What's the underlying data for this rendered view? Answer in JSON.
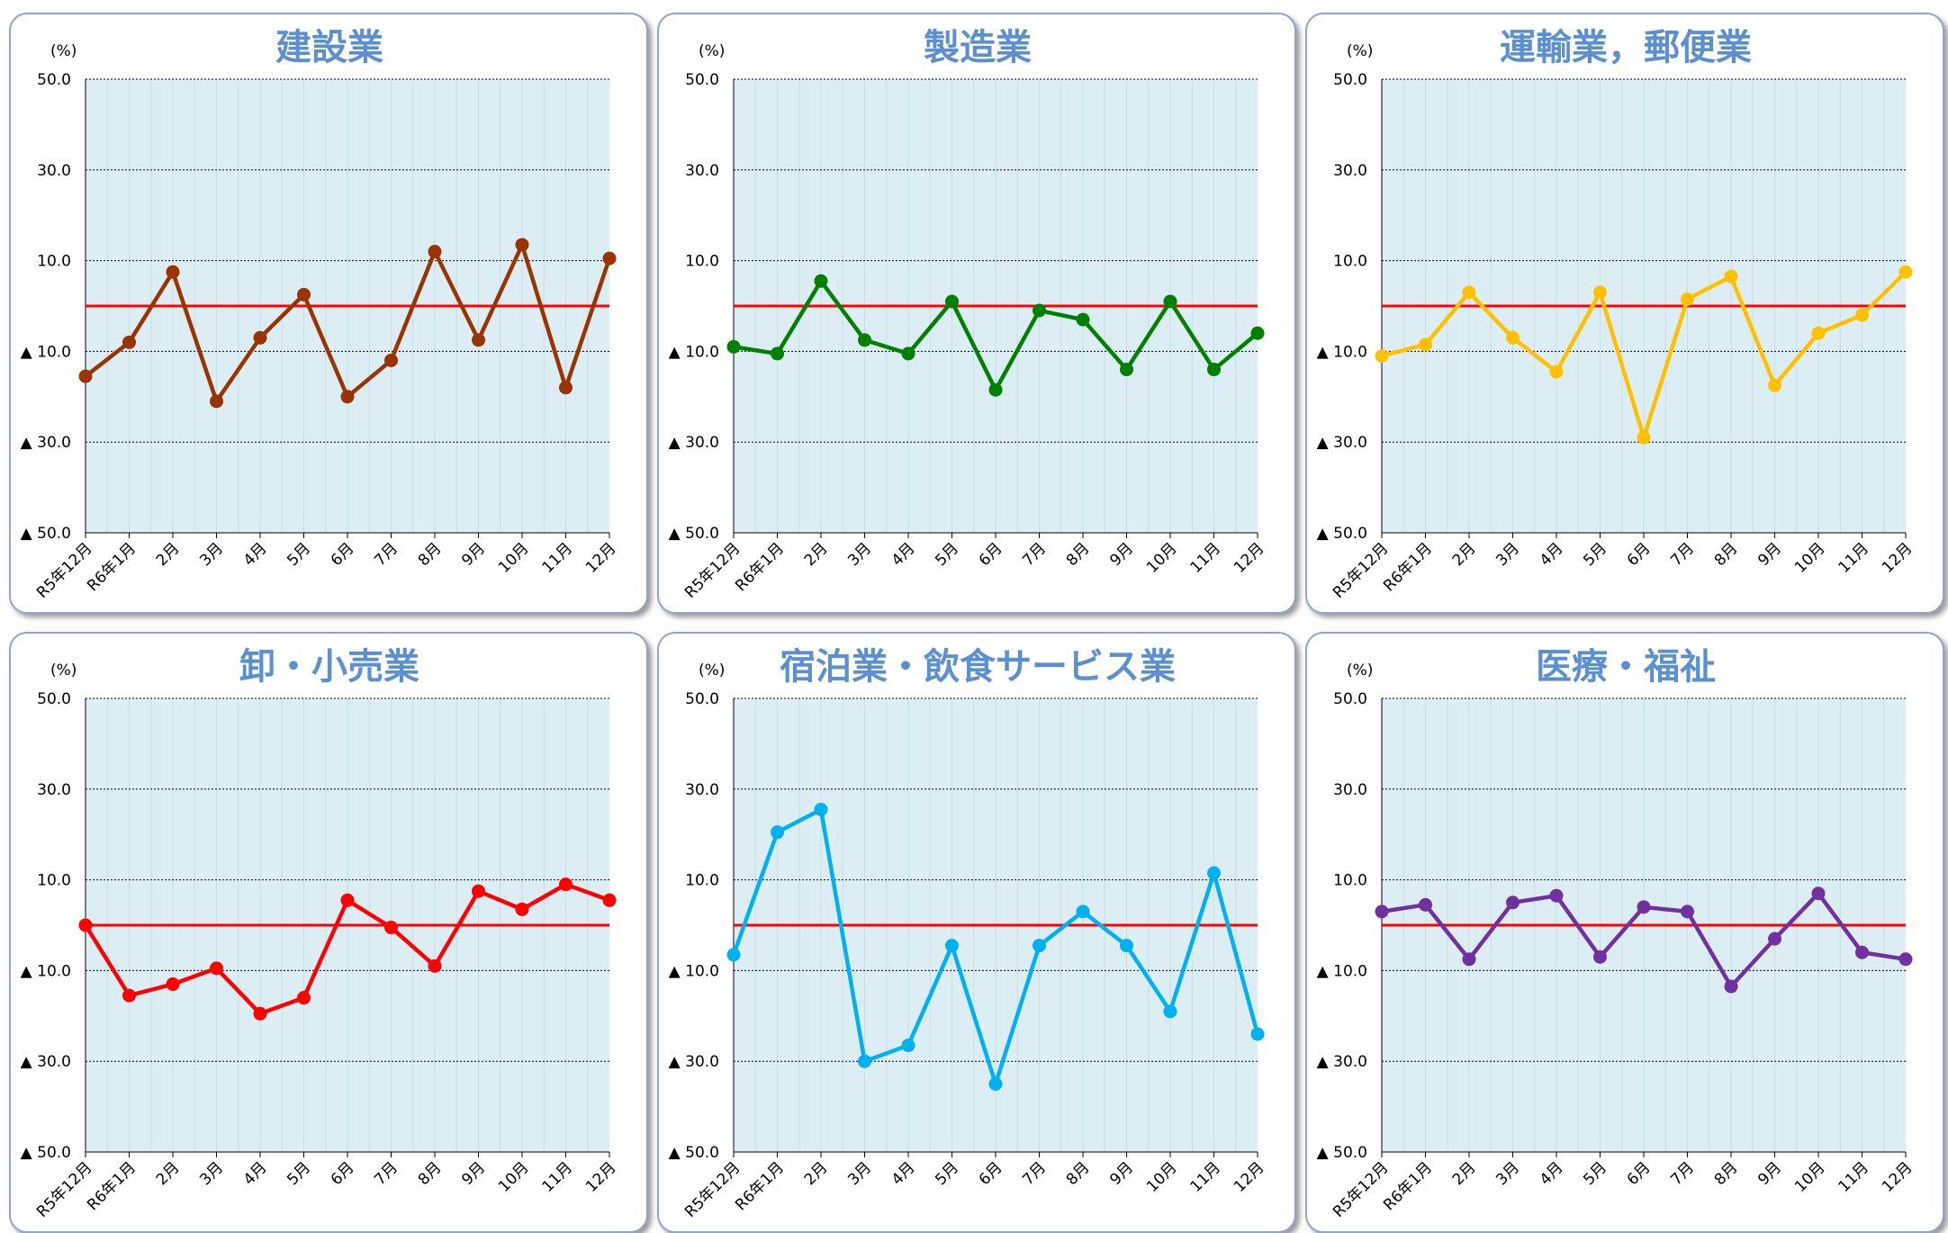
{
  "unit_label": "(%)",
  "y_ticks": [
    "50.0",
    "30.0",
    "10.0",
    "▲ 10.0",
    "▲ 30.0",
    "▲ 50.0"
  ],
  "x_labels": [
    "R5年12月",
    "R6年1月",
    "2月",
    "3月",
    "4月",
    "5月",
    "6月",
    "7月",
    "8月",
    "9月",
    "10月",
    "11月",
    "12月"
  ],
  "colors": {
    "plot_bg": "#dceef4",
    "reference_line": "#ff0000",
    "title": "#5b8fd0"
  },
  "chart_data": [
    {
      "type": "line",
      "title": "建設業",
      "color": "#993300",
      "ylim": [
        -50,
        50
      ],
      "reference_y": 0,
      "x": [
        "R5年12月",
        "R6年1月",
        "2月",
        "3月",
        "4月",
        "5月",
        "6月",
        "7月",
        "8月",
        "9月",
        "10月",
        "11月",
        "12月"
      ],
      "values": [
        -15.5,
        -8,
        7.5,
        -21,
        -7,
        2.5,
        -20,
        -12,
        12,
        -7.5,
        13.5,
        -18,
        10.5
      ]
    },
    {
      "type": "line",
      "title": "製造業",
      "color": "#008000",
      "ylim": [
        -50,
        50
      ],
      "reference_y": 0,
      "x": [
        "R5年12月",
        "R6年1月",
        "2月",
        "3月",
        "4月",
        "5月",
        "6月",
        "7月",
        "8月",
        "9月",
        "10月",
        "11月",
        "12月"
      ],
      "values": [
        -9,
        -10.5,
        5.5,
        -7.5,
        -10.5,
        1,
        -18.5,
        -1,
        -3,
        -14,
        1,
        -14,
        -6
      ]
    },
    {
      "type": "line",
      "title": "運輸業，郵便業",
      "color": "#ffc000",
      "ylim": [
        -50,
        50
      ],
      "reference_y": 0,
      "x": [
        "R5年12月",
        "R6年1月",
        "2月",
        "3月",
        "4月",
        "5月",
        "6月",
        "7月",
        "8月",
        "9月",
        "10月",
        "11月",
        "12月"
      ],
      "values": [
        -11,
        -8.5,
        3,
        -7,
        -14.5,
        3,
        -29,
        1.5,
        6.5,
        -17.5,
        -6,
        -2,
        7.5
      ]
    },
    {
      "type": "line",
      "title": "卸・小売業",
      "color": "#ff0000",
      "ylim": [
        -50,
        50
      ],
      "reference_y": 0,
      "x": [
        "R5年12月",
        "R6年1月",
        "2月",
        "3月",
        "4月",
        "5月",
        "6月",
        "7月",
        "8月",
        "9月",
        "10月",
        "11月",
        "12月"
      ],
      "values": [
        0,
        -15.5,
        -13,
        -9.5,
        -19.5,
        -16,
        5.5,
        -0.5,
        -9,
        7.5,
        3.5,
        9,
        5.5
      ]
    },
    {
      "type": "line",
      "title": "宿泊業・飲食サービス業",
      "color": "#00b0f0",
      "ylim": [
        -50,
        50
      ],
      "reference_y": 0,
      "x": [
        "R5年12月",
        "R6年1月",
        "2月",
        "3月",
        "4月",
        "5月",
        "6月",
        "7月",
        "8月",
        "9月",
        "10月",
        "11月",
        "12月"
      ],
      "values": [
        -6.5,
        20.5,
        25.5,
        -30,
        -26.5,
        -4.5,
        -35,
        -4.5,
        3,
        -4.5,
        -19,
        11.5,
        -24
      ]
    },
    {
      "type": "line",
      "title": "医療・福祉",
      "color": "#7030a0",
      "ylim": [
        -50,
        50
      ],
      "reference_y": 0,
      "x": [
        "R5年12月",
        "R6年1月",
        "2月",
        "3月",
        "4月",
        "5月",
        "6月",
        "7月",
        "8月",
        "9月",
        "10月",
        "11月",
        "12月"
      ],
      "values": [
        3,
        4.5,
        -7.5,
        5,
        6.5,
        -7,
        4,
        3,
        -13.5,
        -3,
        7,
        -6,
        -7.5
      ]
    }
  ]
}
